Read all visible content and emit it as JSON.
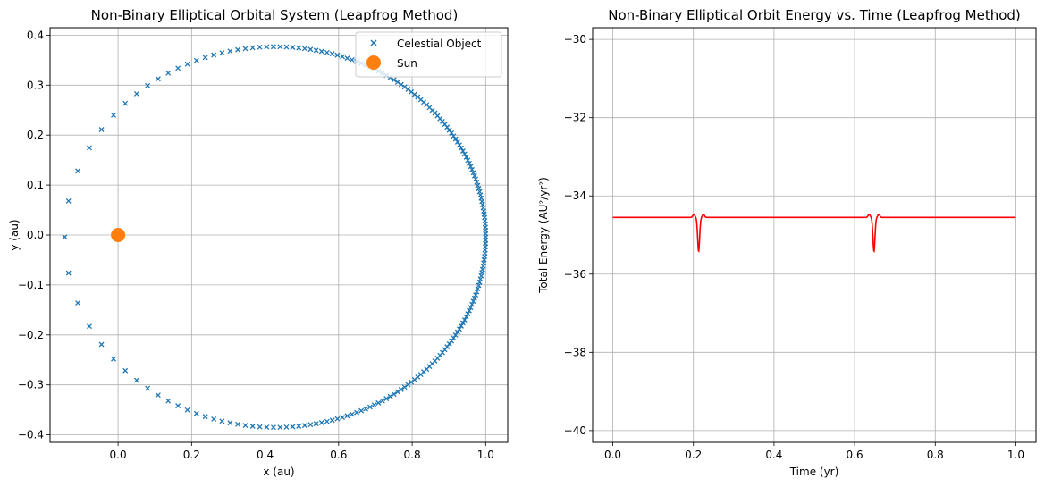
{
  "chart_data": [
    {
      "type": "scatter",
      "title": "Non-Binary Elliptical Orbital System (Leapfrog Method)",
      "xlabel": "x (au)",
      "ylabel": "y (au)",
      "xlim": [
        -0.185,
        1.06
      ],
      "ylim": [
        -0.415,
        0.415
      ],
      "x_ticks": [
        "0.0",
        "0.2",
        "0.4",
        "0.6",
        "0.8",
        "1.0"
      ],
      "y_ticks": [
        "−0.4",
        "−0.3",
        "−0.2",
        "−0.1",
        "0.0",
        "0.1",
        "0.2",
        "0.3",
        "0.4"
      ],
      "grid": true,
      "legend_position": "top-right",
      "series": [
        {
          "name": "Celestial Object",
          "marker": "x",
          "color": "#1f77b4"
        },
        {
          "name": "Sun",
          "marker": "circle",
          "color": "#ff7f0e",
          "points": [
            [
              0.0,
              0.0
            ]
          ]
        }
      ],
      "orbit": {
        "x_min": -0.145,
        "x_max": 1.0,
        "y_min": -0.385,
        "y_max": 0.377,
        "point_count": 200
      }
    },
    {
      "type": "line",
      "title": "Non-Binary Elliptical Orbit Energy vs. Time (Leapfrog Method)",
      "xlabel": "Time (yr)",
      "ylabel": "Total Energy (AU²/yr²)",
      "xlim": [
        -0.05,
        1.05
      ],
      "ylim": [
        -40.3,
        -29.7
      ],
      "x_ticks": [
        "0.0",
        "0.2",
        "0.4",
        "0.6",
        "0.8",
        "1.0"
      ],
      "y_ticks": [
        "−40",
        "−38",
        "−36",
        "−34",
        "−32",
        "−30"
      ],
      "grid": true,
      "series": [
        {
          "color": "#ff0000",
          "baseline": -34.55,
          "dip_times": [
            0.213,
            0.648
          ],
          "dip_min": -35.42,
          "dip_spike": -34.47
        }
      ]
    }
  ]
}
